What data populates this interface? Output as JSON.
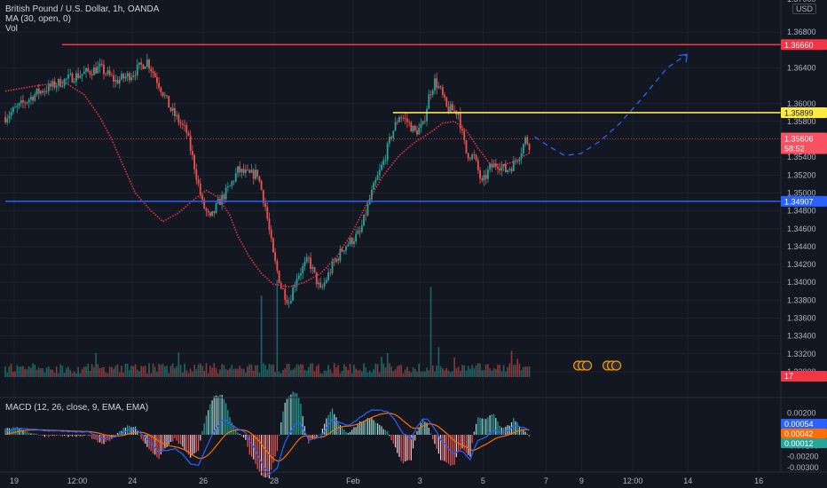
{
  "chart_data": {
    "type": "line",
    "symbol_title": "British Pound / U.S. Dollar, 1h, OANDA",
    "ma_label": "MA (30, open, 0)",
    "vol_label": "Vol",
    "currency": "USD",
    "price_axis": {
      "min": 1.3294,
      "max": 1.3708,
      "ticks": [
        "1.36800",
        "1.36400",
        "1.36000",
        "1.35800",
        "1.35400",
        "1.35200",
        "1.35000",
        "1.34800",
        "1.34600",
        "1.34400",
        "1.34200",
        "1.34000",
        "1.33800",
        "1.33600",
        "1.33400",
        "1.33200",
        "1.33000"
      ],
      "partial_top_tick": "1.37000"
    },
    "x_labels": [
      "19",
      "12:00",
      "24",
      "26",
      "28",
      "Feb",
      "3",
      "5",
      "7",
      "9",
      "12:00",
      "14",
      "16"
    ],
    "horizontal_levels": [
      {
        "price": 1.3666,
        "label": "1.36660",
        "color": "#f23645"
      },
      {
        "price": 1.35899,
        "label": "1.35899",
        "color": "#ffeb3b"
      },
      {
        "price": 1.34907,
        "label": "1.34907",
        "color": "#2962ff"
      }
    ],
    "last_price": {
      "label": "1.35606",
      "countdown": "58:52",
      "color": "#f7525f"
    },
    "volume_badge": "17",
    "price_path": [
      [
        0,
        1.3585
      ],
      [
        4,
        1.3612
      ],
      [
        8,
        1.3628
      ],
      [
        12,
        1.364
      ],
      [
        14,
        1.3625
      ],
      [
        16,
        1.3633
      ],
      [
        18,
        1.3648
      ],
      [
        19.5,
        1.3622
      ],
      [
        21,
        1.3593
      ],
      [
        23,
        1.3568
      ],
      [
        24,
        1.353
      ],
      [
        25,
        1.3488
      ],
      [
        26,
        1.347
      ],
      [
        27,
        1.3488
      ],
      [
        28.5,
        1.3507
      ],
      [
        29.5,
        1.3525
      ],
      [
        31,
        1.352
      ],
      [
        32,
        1.3522
      ],
      [
        33,
        1.3485
      ],
      [
        34,
        1.343
      ],
      [
        35,
        1.3395
      ],
      [
        36,
        1.3378
      ],
      [
        37,
        1.3407
      ],
      [
        38.5,
        1.3425
      ],
      [
        40,
        1.339
      ],
      [
        41.5,
        1.3418
      ],
      [
        43,
        1.344
      ],
      [
        45,
        1.3455
      ],
      [
        46.5,
        1.35
      ],
      [
        48,
        1.3535
      ],
      [
        49,
        1.3565
      ],
      [
        50,
        1.3587
      ],
      [
        51,
        1.358
      ],
      [
        52,
        1.3568
      ],
      [
        53,
        1.3575
      ],
      [
        53.8,
        1.361
      ],
      [
        54.5,
        1.3625
      ],
      [
        55.2,
        1.3615
      ],
      [
        56,
        1.3595
      ],
      [
        57.5,
        1.359
      ],
      [
        58,
        1.3565
      ],
      [
        58.5,
        1.3545
      ],
      [
        59.5,
        1.354
      ],
      [
        60.5,
        1.351
      ],
      [
        61.5,
        1.3528
      ],
      [
        62.5,
        1.3533
      ],
      [
        63.5,
        1.3525
      ],
      [
        64.5,
        1.3532
      ],
      [
        65.5,
        1.3548
      ],
      [
        66,
        1.356
      ],
      [
        66.6,
        1.3553
      ]
    ],
    "ma_path": [
      [
        0,
        1.3614
      ],
      [
        4,
        1.362
      ],
      [
        7.5,
        1.3624
      ],
      [
        10,
        1.361
      ],
      [
        12,
        1.3585
      ],
      [
        13.5,
        1.356
      ],
      [
        15,
        1.353
      ],
      [
        16.5,
        1.35
      ],
      [
        18.5,
        1.348
      ],
      [
        20,
        1.3468
      ],
      [
        22,
        1.3478
      ],
      [
        24,
        1.3493
      ],
      [
        25.5,
        1.3503
      ],
      [
        27,
        1.3495
      ],
      [
        28.5,
        1.3475
      ],
      [
        29.5,
        1.3452
      ],
      [
        31,
        1.3428
      ],
      [
        32.5,
        1.341
      ],
      [
        34,
        1.3398
      ],
      [
        36,
        1.3395
      ],
      [
        38,
        1.34
      ],
      [
        40,
        1.341
      ],
      [
        42,
        1.3428
      ],
      [
        44,
        1.3455
      ],
      [
        46,
        1.349
      ],
      [
        48,
        1.352
      ],
      [
        50,
        1.3542
      ],
      [
        52,
        1.3557
      ],
      [
        54,
        1.3568
      ],
      [
        55.5,
        1.3578
      ],
      [
        57,
        1.358
      ],
      [
        58.5,
        1.357
      ],
      [
        60,
        1.355
      ],
      [
        61.5,
        1.3533
      ],
      [
        63,
        1.3531
      ],
      [
        64.5,
        1.3535
      ],
      [
        66.6,
        1.3545
      ]
    ],
    "forecast_path": [
      [
        67.2,
        1.3563
      ],
      [
        69,
        1.3552
      ],
      [
        71,
        1.3542
      ],
      [
        73,
        1.3544
      ],
      [
        75.5,
        1.3558
      ],
      [
        78,
        1.3578
      ],
      [
        81,
        1.3608
      ],
      [
        84,
        1.364
      ],
      [
        86.5,
        1.3655
      ]
    ],
    "volume_series": {
      "description_units": "relative",
      "spike_at": [
        32.5,
        34.5,
        54
      ]
    },
    "macd": {
      "label": "MACD (12, 26, close, 9, EMA, EMA)",
      "axis": {
        "min": -0.0034,
        "max": 0.0034
      },
      "ticks": [
        "0.00200",
        "-0.00100",
        "-0.00200",
        "-0.00300"
      ],
      "macd_value": "0.00054",
      "signal_value": "0.00042",
      "hist_value": "0.00012",
      "macd_color": "#2962ff",
      "signal_color": "#ff6d00",
      "hist_color": "#26a69a"
    },
    "colors": {
      "up": "#26a69a",
      "down": "#ef5350",
      "ma": "#f23645",
      "forecast": "#2962ff"
    }
  }
}
